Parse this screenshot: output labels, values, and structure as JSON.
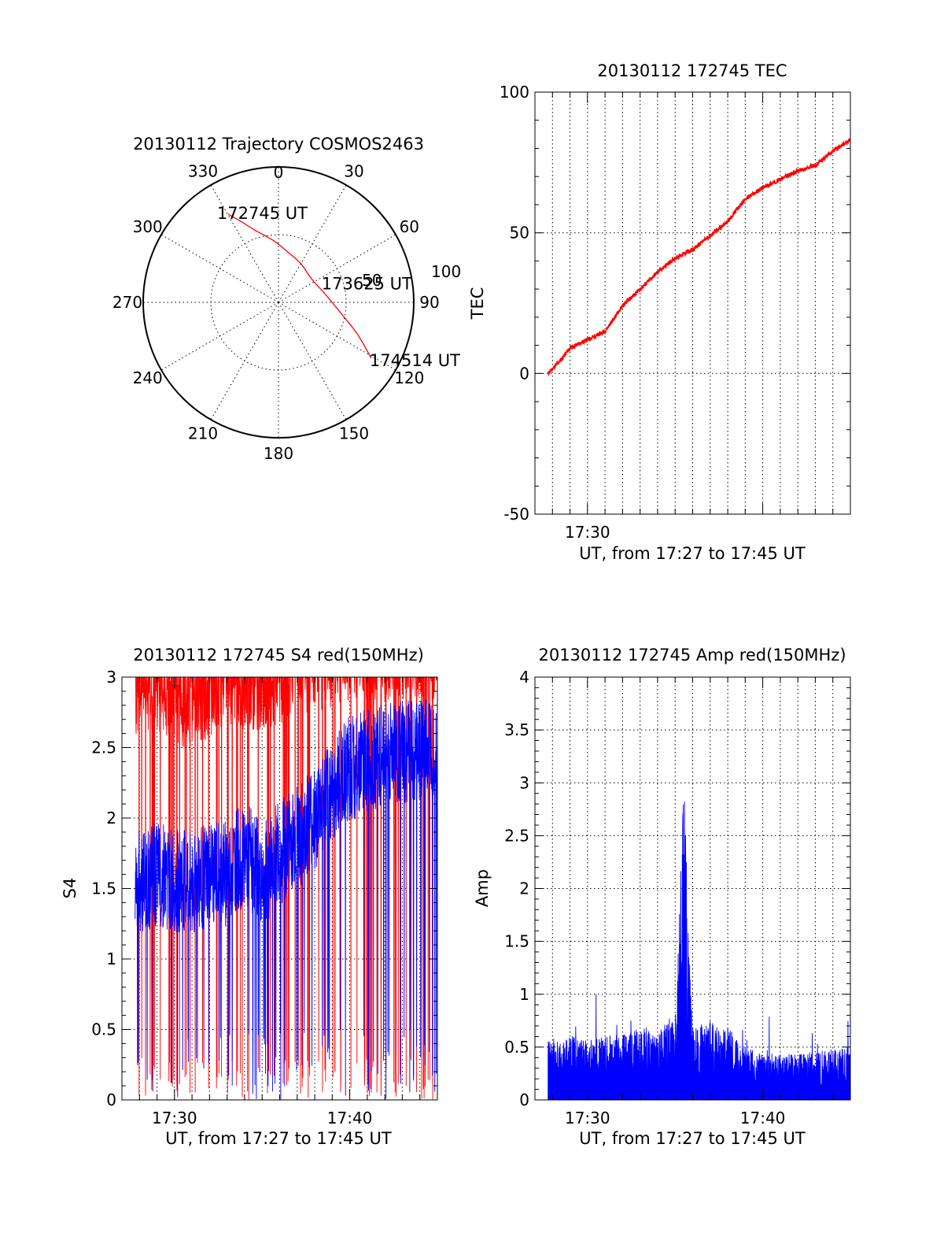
{
  "chart_data": [
    {
      "id": "trajectory",
      "type": "polar",
      "title": "20130112 Trajectory COSMOS2463",
      "azimuth_ticks": [
        "0",
        "30",
        "60",
        "90",
        "120",
        "150",
        "180",
        "210",
        "240",
        "270",
        "300",
        "330"
      ],
      "radial_ticks": [
        "50",
        "100"
      ],
      "radial_max": 100,
      "trajectory": {
        "color": "#ff0000",
        "points": [
          [
            330.2,
            75
          ],
          [
            335,
            66
          ],
          [
            342,
            56
          ],
          [
            355,
            46
          ],
          [
            10,
            38
          ],
          [
            30,
            33
          ],
          [
            55,
            30
          ],
          [
            80,
            35
          ],
          [
            100,
            47
          ],
          [
            112,
            63
          ],
          [
            121,
            80
          ]
        ],
        "labels": [
          {
            "text": "172745 UT",
            "az": 330.2,
            "r": 75
          },
          {
            "text": "173625 UT",
            "az": 75,
            "r": 33
          },
          {
            "text": "174514 UT",
            "az": 121,
            "r": 80
          }
        ]
      }
    },
    {
      "id": "tec",
      "type": "line",
      "title": "20130112 172745 TEC",
      "xlabel": "UT, from 17:27 to 17:45 UT",
      "ylabel": "TEC",
      "xlim": [
        "17:27",
        "17:45"
      ],
      "ylim": [
        -50,
        100
      ],
      "x_tick_labels": [
        "17:30"
      ],
      "y_ticks": [
        "-50",
        "0",
        "50",
        "100"
      ],
      "grid": true,
      "series": [
        {
          "color": "#ff0000",
          "x": [
            "17:27:45",
            "17:28:30",
            "17:29:00",
            "17:30:00",
            "17:31:00",
            "17:32:00",
            "17:33:00",
            "17:34:00",
            "17:35:00",
            "17:36:00",
            "17:37:00",
            "17:38:00",
            "17:39:00",
            "17:40:00",
            "17:41:00",
            "17:42:00",
            "17:43:00",
            "17:44:00",
            "17:45:00"
          ],
          "values": [
            0,
            5,
            9,
            12,
            15,
            24,
            30,
            36,
            41,
            44,
            49,
            54,
            62,
            66,
            69,
            72,
            74,
            79,
            83
          ]
        }
      ]
    },
    {
      "id": "s4",
      "type": "line",
      "title": "20130112 172745 S4 red(150MHz)",
      "xlabel": "UT, from 17:27 to 17:45 UT",
      "ylabel": "S4",
      "xlim": [
        "17:27",
        "17:45"
      ],
      "ylim": [
        0,
        3
      ],
      "x_tick_labels": [
        "17:30",
        "17:40"
      ],
      "y_ticks": [
        "0",
        "0.5",
        "1",
        "1.5",
        "2",
        "2.5",
        "3"
      ],
      "grid": true,
      "series": [
        {
          "color": "#ff0000",
          "x": [
            "17:27:45",
            "17:29:00",
            "17:30:00",
            "17:31:00",
            "17:32:00",
            "17:33:00",
            "17:34:00",
            "17:35:00",
            "17:36:00",
            "17:37:00",
            "17:38:00",
            "17:39:00",
            "17:40:00",
            "17:42:00",
            "17:45:00"
          ],
          "values": [
            2.75,
            2.8,
            2.7,
            2.65,
            2.75,
            2.85,
            2.8,
            2.8,
            2.85,
            2.9,
            2.95,
            2.95,
            3.0,
            3.0,
            3.0
          ]
        },
        {
          "color": "#0000ff",
          "x": [
            "17:27:45",
            "17:29:00",
            "17:30:00",
            "17:31:00",
            "17:32:00",
            "17:33:00",
            "17:34:00",
            "17:35:00",
            "17:36:00",
            "17:37:00",
            "17:38:00",
            "17:39:00",
            "17:40:00",
            "17:42:00",
            "17:45:00"
          ],
          "values": [
            1.55,
            1.6,
            1.55,
            1.55,
            1.6,
            1.6,
            1.75,
            1.6,
            1.75,
            1.85,
            2.0,
            2.2,
            2.35,
            2.45,
            2.5
          ]
        }
      ]
    },
    {
      "id": "amp",
      "type": "line",
      "title": "20130112 172745 Amp red(150MHz)",
      "xlabel": "UT, from 17:27 to 17:45 UT",
      "ylabel": "Amp",
      "xlim": [
        "17:27",
        "17:45"
      ],
      "ylim": [
        0,
        4
      ],
      "x_tick_labels": [
        "17:30",
        "17:40"
      ],
      "y_ticks": [
        "0",
        "0.5",
        "1",
        "1.5",
        "2",
        "2.5",
        "3",
        "3.5",
        "4"
      ],
      "grid": true,
      "series": [
        {
          "color": "#0000ff",
          "x": [
            "17:27:45",
            "17:29:00",
            "17:30:00",
            "17:31:00",
            "17:32:00",
            "17:33:00",
            "17:34:00",
            "17:35:00",
            "17:35:30",
            "17:36:00",
            "17:37:00",
            "17:38:00",
            "17:39:00",
            "17:40:00",
            "17:42:00",
            "17:45:00"
          ],
          "values": [
            0.45,
            0.5,
            0.45,
            0.5,
            0.5,
            0.55,
            0.55,
            0.6,
            2.4,
            0.55,
            0.6,
            0.55,
            0.4,
            0.35,
            0.35,
            0.4
          ]
        }
      ]
    }
  ]
}
